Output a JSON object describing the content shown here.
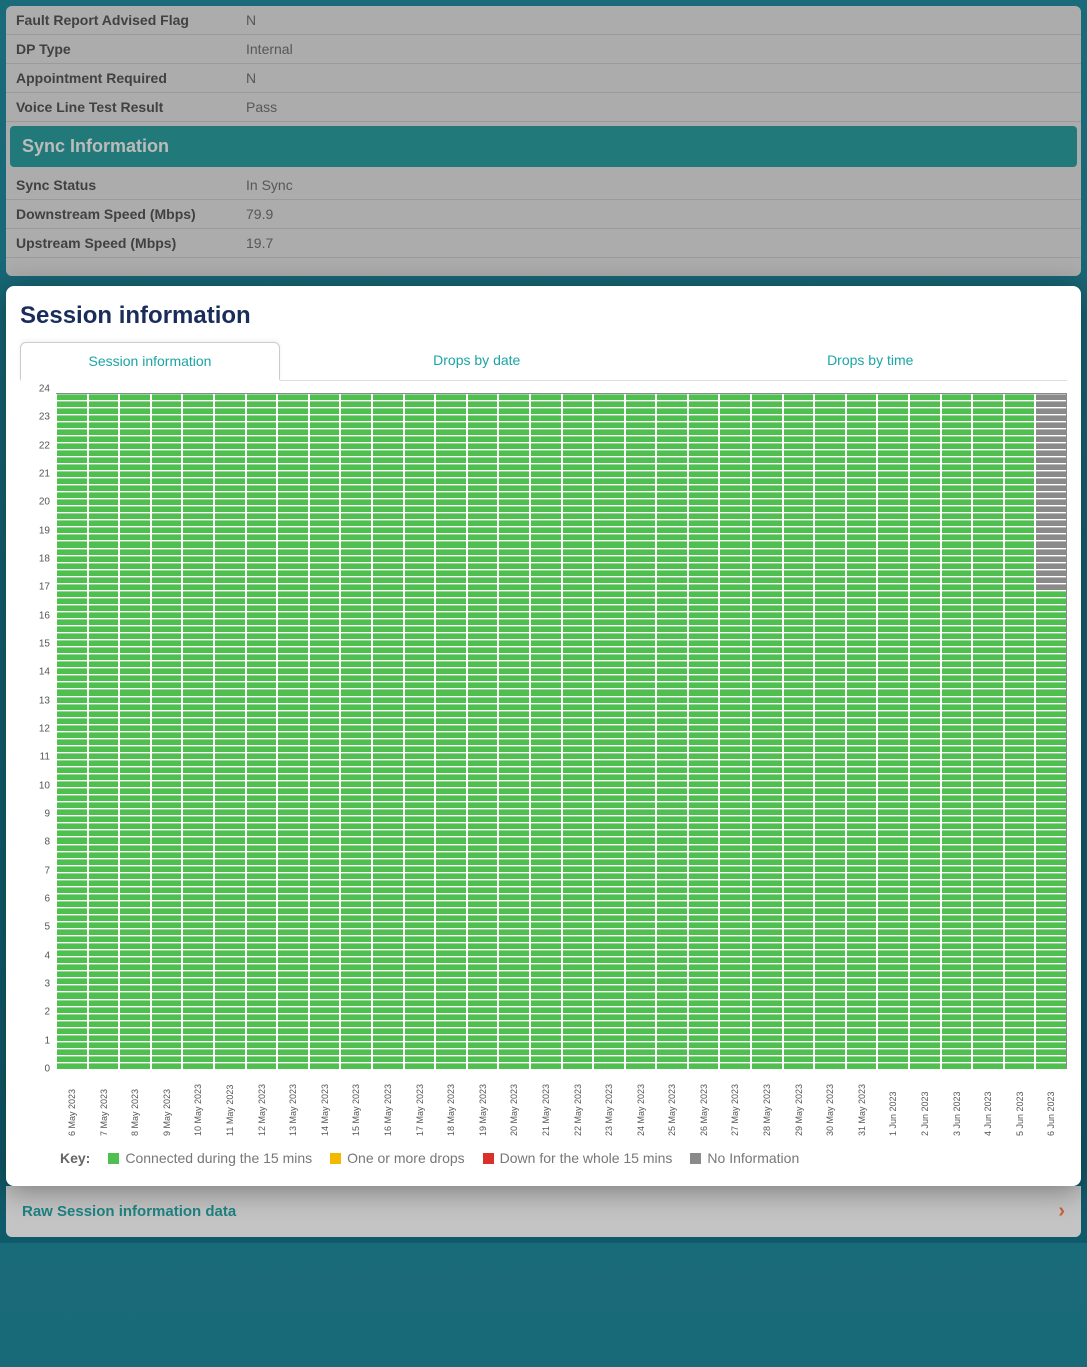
{
  "top_rows": [
    {
      "label": "Fault Report Advised Flag",
      "value": "N"
    },
    {
      "label": "DP Type",
      "value": "Internal"
    },
    {
      "label": "Appointment Required",
      "value": "N"
    },
    {
      "label": "Voice Line Test Result",
      "value": "Pass"
    }
  ],
  "sync_header": "Sync Information",
  "sync_rows": [
    {
      "label": "Sync Status",
      "value": "In Sync"
    },
    {
      "label": "Downstream Speed (Mbps)",
      "value": "79.9"
    },
    {
      "label": "Upstream Speed (Mbps)",
      "value": "19.7"
    }
  ],
  "modal": {
    "title": "Session information",
    "tabs": [
      "Session information",
      "Drops by date",
      "Drops by time"
    ],
    "active_tab": 0
  },
  "chart": {
    "type": "heatmap",
    "y_ticks": [
      0,
      1,
      2,
      3,
      4,
      5,
      6,
      7,
      8,
      9,
      10,
      11,
      12,
      13,
      14,
      15,
      16,
      17,
      18,
      19,
      20,
      21,
      22,
      23,
      24
    ],
    "ylim": [
      0,
      24
    ],
    "cells_per_hour": 4,
    "dates": [
      "6 May 2023",
      "7 May 2023",
      "8 May 2023",
      "9 May 2023",
      "10 May 2023",
      "11 May 2023",
      "12 May 2023",
      "13 May 2023",
      "14 May 2023",
      "15 May 2023",
      "16 May 2023",
      "17 May 2023",
      "18 May 2023",
      "19 May 2023",
      "20 May 2023",
      "21 May 2023",
      "22 May 2023",
      "23 May 2023",
      "24 May 2023",
      "25 May 2023",
      "26 May 2023",
      "27 May 2023",
      "28 May 2023",
      "29 May 2023",
      "30 May 2023",
      "31 May 2023",
      "1 Jun 2023",
      "2 Jun 2023",
      "3 Jun 2023",
      "4 Jun 2023",
      "5 Jun 2023",
      "6 Jun 2023"
    ],
    "colors": {
      "connected": "#4fbf4f",
      "drops": "#f5b800",
      "down": "#d9302c",
      "noinfo": "#8a8a8a",
      "grid_line": "#ffffff",
      "background": "#ffffff"
    },
    "last_day_noinfo_from_hour": 17,
    "legend": {
      "key_label": "Key:",
      "items": [
        {
          "label": "Connected during the 15 mins",
          "color": "#4fbf4f"
        },
        {
          "label": "One or more drops",
          "color": "#f5b800"
        },
        {
          "label": "Down for the whole 15 mins",
          "color": "#d9302c"
        },
        {
          "label": "No Information",
          "color": "#8a8a8a"
        }
      ]
    }
  },
  "bottom_bar": {
    "label": "Raw Session information data"
  }
}
